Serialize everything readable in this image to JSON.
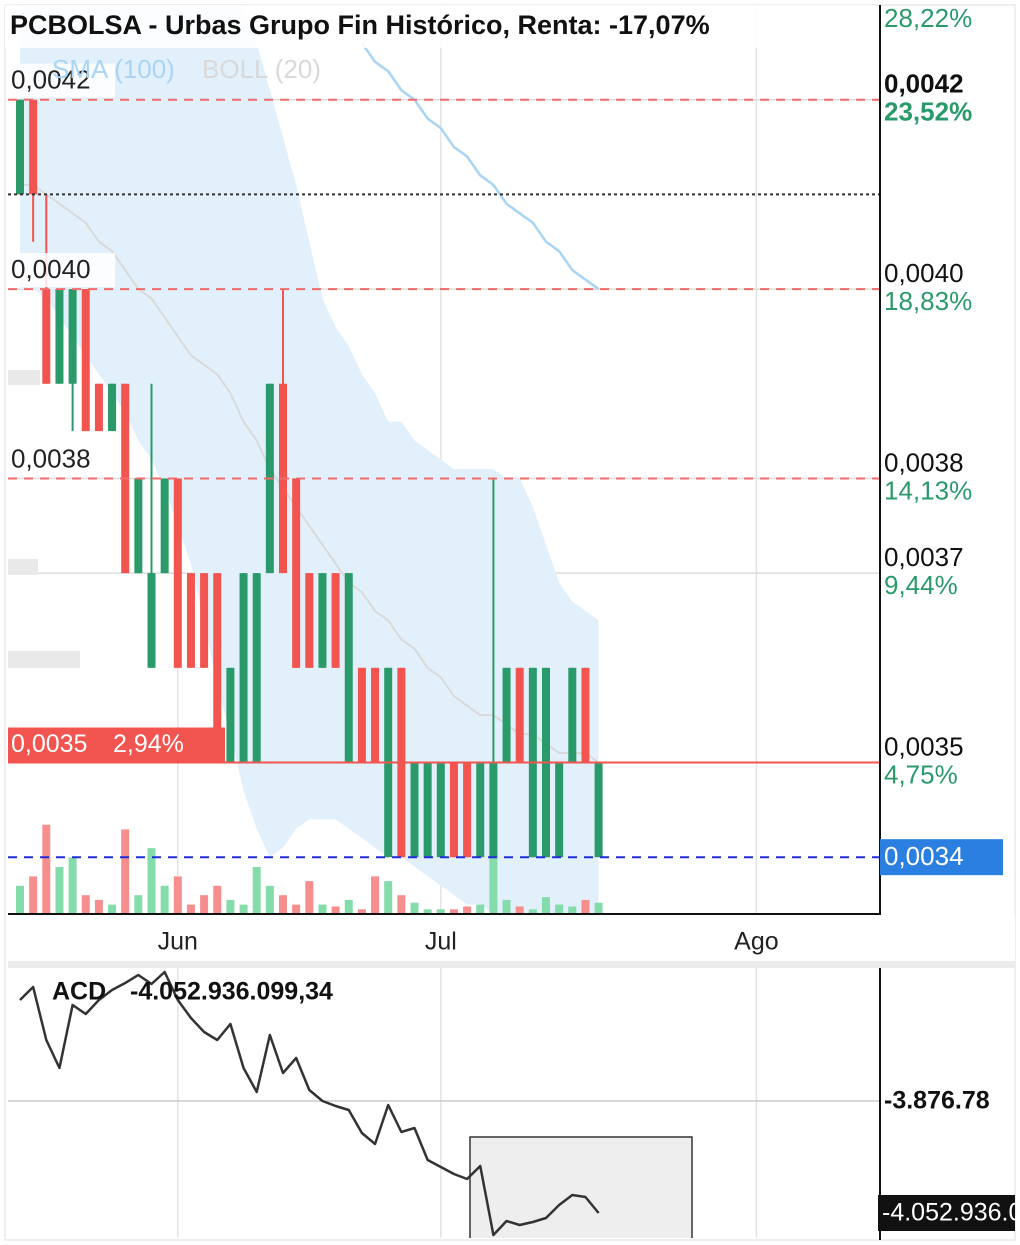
{
  "chart_data": [
    {
      "type": "candlestick",
      "title": "PCBOLSA - Urbas Grupo Fin Histórico, Renta: -17,07%",
      "categories": [
        null,
        null,
        null,
        null,
        null,
        null,
        null,
        null,
        null,
        null,
        null,
        null,
        "Jun",
        null,
        null,
        null,
        null,
        null,
        null,
        null,
        null,
        null,
        null,
        null,
        null,
        null,
        null,
        null,
        null,
        null,
        null,
        null,
        "Jul",
        null,
        null,
        null,
        null,
        null,
        null,
        null,
        null,
        null,
        null,
        null,
        null,
        null,
        null,
        null,
        null,
        null,
        null,
        null,
        null,
        null,
        null,
        null,
        "Ago",
        null,
        null,
        null,
        null,
        null,
        null,
        null,
        null,
        null
      ],
      "open": [
        0.0041,
        0.0042,
        0.004,
        0.0039,
        0.0039,
        0.004,
        0.0039,
        0.00385,
        0.0039,
        0.0037,
        0.0036,
        0.0037,
        0.0038,
        0.0037,
        0.0037,
        0.0037,
        0.0035,
        0.0035,
        0.0035,
        0.0037,
        0.0039,
        0.0038,
        0.0037,
        0.0036,
        0.0037,
        0.0035,
        0.0036,
        0.0036,
        0.0034,
        0.0036,
        0.0034,
        0.0034,
        0.0034,
        0.0035,
        0.0035,
        0.0034,
        0.0034,
        0.0035,
        0.0036,
        0.0034,
        0.0034,
        0.0034,
        0.0035,
        0.0036,
        0.0034,
        null,
        null,
        null,
        null,
        null,
        null,
        null,
        null,
        null,
        null,
        null,
        null,
        null,
        null,
        null,
        null,
        null,
        null,
        null,
        null,
        null
      ],
      "high": [
        0.0042,
        0.0042,
        0.0041,
        0.004,
        0.004,
        0.004,
        0.0039,
        0.0039,
        0.0039,
        0.0038,
        0.0039,
        0.0038,
        0.0038,
        0.0037,
        0.0037,
        0.0037,
        0.0036,
        0.0037,
        0.0037,
        0.0039,
        0.004,
        0.0038,
        0.0037,
        0.0037,
        0.0037,
        0.0037,
        0.0036,
        0.0036,
        0.0036,
        0.0036,
        0.0035,
        0.0035,
        0.0035,
        0.0035,
        0.0035,
        0.0035,
        0.0038,
        0.0036,
        0.0036,
        0.0036,
        0.0036,
        0.0035,
        0.0036,
        0.0036,
        0.0035,
        null,
        null,
        null,
        null,
        null,
        null,
        null,
        null,
        null,
        null,
        null,
        null,
        null,
        null,
        null,
        null,
        null,
        null,
        null,
        null,
        null
      ],
      "low": [
        0.0041,
        0.00405,
        0.0039,
        0.0039,
        0.00385,
        0.00385,
        0.00385,
        0.00385,
        0.0037,
        0.0037,
        0.0036,
        0.0037,
        0.0036,
        0.0036,
        0.0036,
        0.0035,
        0.0035,
        0.0035,
        0.0035,
        0.0037,
        0.0037,
        0.0036,
        0.0036,
        0.0036,
        0.0036,
        0.0035,
        0.0035,
        0.0035,
        0.0034,
        0.0034,
        0.0034,
        0.0034,
        0.0034,
        0.0034,
        0.0034,
        0.0034,
        0.0034,
        0.0035,
        0.0035,
        0.0034,
        0.0034,
        0.0034,
        0.0035,
        0.0035,
        0.0034,
        null,
        null,
        null,
        null,
        null,
        null,
        null,
        null,
        null,
        null,
        null,
        null,
        null,
        null,
        null,
        null,
        null,
        null,
        null,
        null,
        null
      ],
      "close": [
        0.0042,
        0.0041,
        0.0039,
        0.004,
        0.004,
        0.00385,
        0.00385,
        0.0039,
        0.0037,
        0.0038,
        0.0037,
        0.0038,
        0.0036,
        0.0036,
        0.0036,
        0.0035,
        0.0036,
        0.0037,
        0.0037,
        0.0039,
        0.0037,
        0.0036,
        0.0036,
        0.0037,
        0.0036,
        0.0037,
        0.0035,
        0.0035,
        0.0036,
        0.0034,
        0.0035,
        0.0035,
        0.0035,
        0.0034,
        0.0034,
        0.0035,
        0.0035,
        0.0036,
        0.0035,
        0.0036,
        0.0036,
        0.0035,
        0.0036,
        0.0035,
        0.0035,
        null,
        null,
        null,
        null,
        null,
        null,
        null,
        null,
        null,
        null,
        null,
        null,
        null,
        null,
        null,
        null,
        null,
        null,
        null,
        null,
        null
      ],
      "up_color": "#2a9a6a",
      "down_color": "#f2544f",
      "volume": [
        30,
        40,
        95,
        50,
        60,
        20,
        15,
        10,
        90,
        20,
        70,
        30,
        40,
        10,
        20,
        30,
        15,
        10,
        50,
        30,
        20,
        10,
        35,
        10,
        8,
        15,
        5,
        40,
        35,
        20,
        12,
        5,
        5,
        5,
        8,
        10,
        60,
        15,
        8,
        5,
        18,
        10,
        8,
        15,
        12,
        null,
        null,
        null,
        null,
        null,
        null,
        null,
        null,
        null,
        null,
        null,
        null,
        null,
        null,
        null,
        null,
        null,
        null,
        null,
        null,
        null
      ],
      "volume_ylim": [
        0,
        100
      ],
      "volume_up_color": "#84dcab",
      "volume_down_color": "#f68e8e",
      "overlays": [
        {
          "name": "SMA (100)",
          "color": "#a9d4f4",
          "values": [
            null,
            null,
            null,
            null,
            null,
            null,
            null,
            null,
            null,
            null,
            null,
            null,
            null,
            null,
            null,
            null,
            null,
            null,
            null,
            null,
            null,
            null,
            null,
            null,
            null,
            null,
            0.00426,
            0.00424,
            0.00423,
            0.00421,
            0.0042,
            0.00418,
            0.00417,
            0.00415,
            0.00414,
            0.00412,
            0.00411,
            0.00409,
            0.00408,
            0.00407,
            0.00405,
            0.00404,
            0.00402,
            0.00401,
            0.004,
            null,
            null,
            null,
            null,
            null,
            null,
            null,
            null,
            null,
            null,
            null,
            null,
            null,
            null,
            null,
            null,
            null,
            null,
            null,
            null,
            null
          ]
        },
        {
          "name": "BOLL (20)",
          "color": "#d9d9d9",
          "fill": "#e2f0fc",
          "upper": [
            0.00435,
            0.00435,
            0.00435,
            0.00435,
            0.00435,
            0.00435,
            0.00435,
            0.00435,
            0.00435,
            0.00435,
            0.00435,
            0.00435,
            0.00435,
            0.00435,
            0.00435,
            0.00435,
            0.00432,
            0.0043,
            0.00426,
            0.00421,
            0.00416,
            0.00411,
            0.00405,
            0.00399,
            0.00396,
            0.00394,
            0.00391,
            0.00389,
            0.00386,
            0.00386,
            0.00384,
            0.00383,
            0.00382,
            0.00381,
            0.00381,
            0.00381,
            0.00381,
            0.0038,
            0.0038,
            0.00377,
            0.00373,
            0.00369,
            0.00367,
            0.00366,
            0.00365,
            null,
            null,
            null,
            null,
            null,
            null,
            null,
            null,
            null,
            null,
            null,
            null,
            null,
            null,
            null,
            null,
            null,
            null,
            null,
            null,
            null
          ],
          "middle": [
            0.00411,
            0.00411,
            0.0041,
            0.00409,
            0.00408,
            0.00407,
            0.00405,
            0.00404,
            0.00402,
            0.004,
            0.00399,
            0.00397,
            0.00395,
            0.00393,
            0.00392,
            0.00391,
            0.00389,
            0.00386,
            0.00384,
            0.00381,
            0.00379,
            0.00377,
            0.00375,
            0.00373,
            0.00371,
            0.00369,
            0.00368,
            0.00366,
            0.00365,
            0.00363,
            0.00362,
            0.0036,
            0.00359,
            0.00357,
            0.00356,
            0.00355,
            0.00355,
            0.00354,
            0.00353,
            0.00353,
            0.00352,
            0.00351,
            0.00351,
            0.00351,
            0.0035,
            null,
            null,
            null,
            null,
            null,
            null,
            null,
            null,
            null,
            null,
            null,
            null,
            null,
            null,
            null,
            null,
            null,
            null,
            null,
            null,
            null
          ],
          "lower": [
            0.004,
            0.004,
            0.00399,
            0.00397,
            0.00395,
            0.00393,
            0.00391,
            0.00389,
            0.00387,
            0.00384,
            0.00382,
            0.00379,
            0.00375,
            0.00371,
            0.00365,
            0.00358,
            0.00353,
            0.00347,
            0.00343,
            0.0034,
            0.00341,
            0.00343,
            0.00344,
            0.00344,
            0.00344,
            0.00343,
            0.00342,
            0.00341,
            0.0034,
            0.0034,
            0.00339,
            0.00338,
            0.00337,
            0.00336,
            0.00335,
            0.00335,
            0.00334,
            0.00334,
            0.00334,
            0.00334,
            0.00334,
            0.00334,
            0.00334,
            0.00334,
            0.00334,
            null,
            null,
            null,
            null,
            null,
            null,
            null,
            null,
            null,
            null,
            null,
            null,
            null,
            null,
            null,
            null,
            null,
            null,
            null,
            null,
            null
          ]
        }
      ],
      "ylim": [
        0.00334,
        0.0043
      ],
      "yticks": [
        {
          "value": 0.0042,
          "label": "0,0042"
        },
        {
          "value": 0.004,
          "label": "0,0040"
        },
        {
          "value": 0.0038,
          "label": "0,0038"
        },
        {
          "value": 0.0037,
          "label": "0,0037"
        },
        {
          "value": 0.0035,
          "label": "0,0035"
        }
      ],
      "ytick_changes": [
        {
          "value": 23.52,
          "label": "23,52%"
        },
        {
          "value": 18.83,
          "label": "18,83%"
        },
        {
          "value": 14.13,
          "label": "14,13%"
        },
        {
          "value": 9.44,
          "label": "9,44%"
        },
        {
          "value": 4.75,
          "label": "4,75%"
        }
      ],
      "top_change": {
        "value": 28.22,
        "label": "28,22%"
      },
      "grid": true,
      "reference_lines": [
        {
          "value": 0.0042,
          "color": "#f26b6b",
          "dash": "9 7"
        },
        {
          "value": 0.004,
          "color": "#f26b6b",
          "dash": "9 7"
        },
        {
          "value": 0.0038,
          "color": "#f26b6b",
          "dash": "9 7"
        },
        {
          "value": 0.0041,
          "color": "#333333",
          "dash": "3 3"
        },
        {
          "value": 0.0034,
          "color": "#1f2ed6",
          "dash": "9 7",
          "label": "0,0034",
          "label_color": "#2b7fe0"
        }
      ],
      "last": {
        "value": 0.0035,
        "label": "0,0035",
        "color": "#f2544f",
        "change": {
          "value": 2.94,
          "label": "2,94%"
        }
      }
    },
    {
      "type": "line",
      "title": "ACD",
      "value_label": {
        "value": -4052936099.34,
        "label": "-4.052.936.099,34"
      },
      "color": "#333333",
      "values": [
        -3717920000,
        -3697480000,
        -3780840000,
        -3824880000,
        -3725780000,
        -3739950000,
        -3717920000,
        -3702200000,
        -3691190000,
        -3678600000,
        -3692760000,
        -3673890000,
        -3717920000,
        -3746240000,
        -3768260000,
        -3780840000,
        -3755670000,
        -3824880000,
        -3862620000,
        -3772970000,
        -3832740000,
        -3809150000,
        -3859480000,
        -3876780000,
        -3884640000,
        -3890940000,
        -3927110000,
        -3944410000,
        -3883070000,
        -3925540000,
        -3919250000,
        -3969580000,
        -3980590000,
        -3991600000,
        -3999460000,
        -3979010000,
        -4087540000,
        -4065520000,
        -4071810000,
        -4067090000,
        -4060800000,
        -4040350000,
        -4024630000,
        -4027770000,
        -4052936099.34,
        null,
        null,
        null,
        null,
        null,
        null,
        null,
        null,
        null,
        null,
        null,
        null,
        null,
        null,
        null,
        null,
        null,
        null,
        null,
        null,
        null
      ],
      "ylim": [
        -4092250000,
        -3667600000
      ],
      "yticks": [
        {
          "value": -3876780000,
          "label": "-3.876.78"
        }
      ],
      "grid": true
    }
  ]
}
